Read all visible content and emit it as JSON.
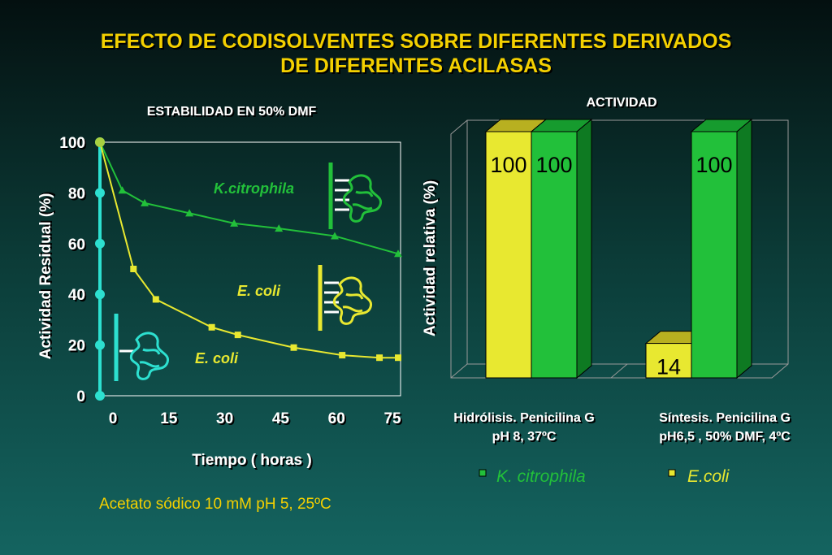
{
  "title": {
    "line1": "EFECTO DE CODISOLVENTES SOBRE DIFERENTES DERIVADOS",
    "line2": "DE DIFERENTES ACILASAS"
  },
  "colors": {
    "kcitrophila": "#22c03a",
    "ecoli": "#e8e830",
    "cyan": "#2de0d0",
    "title": "#f4d000"
  },
  "chart_data": [
    {
      "type": "line",
      "title": "ESTABILIDAD EN 50% DMF",
      "xlabel": "Tiempo ( horas )",
      "ylabel": "Actividad Residual (%)",
      "xlim": [
        0,
        80
      ],
      "ylim": [
        0,
        100
      ],
      "xticks": [
        "0",
        "15",
        "30",
        "45",
        "60",
        "75"
      ],
      "yticks": [
        "0",
        "20",
        "40",
        "60",
        "80",
        "100"
      ],
      "series": [
        {
          "name": "K.citrophila",
          "x": [
            0,
            6,
            12,
            24,
            36,
            48,
            63,
            80
          ],
          "y": [
            100,
            81,
            76,
            72,
            68,
            66,
            63,
            56
          ]
        },
        {
          "name": "E. coli",
          "x": [
            0,
            9,
            15,
            30,
            37,
            52,
            65,
            75,
            80
          ],
          "y": [
            100,
            50,
            38,
            27,
            24,
            19,
            16,
            15,
            15
          ]
        }
      ],
      "annotations": [
        "K.citrophila",
        "E. coli",
        "E. coli"
      ],
      "note": "Acetato sódico 10 mM pH 5, 25ºC"
    },
    {
      "type": "bar",
      "title": "ACTIVIDAD",
      "ylabel": "Actividad relativa (%)",
      "ylim": [
        0,
        100
      ],
      "categories": [
        {
          "line1": "Hidrólisis. Penicilina  G",
          "line2": "pH 8, 37ºC"
        },
        {
          "line1": "Síntesis. Penicilina  G",
          "line2": "pH6,5 , 50% DMF, 4ºC"
        }
      ],
      "series": [
        {
          "name": "K. citrophila",
          "values": [
            100,
            100
          ]
        },
        {
          "name": "E.coli",
          "values": [
            100,
            14
          ]
        }
      ],
      "data_labels": [
        [
          "100",
          "100"
        ],
        [
          "100",
          "14"
        ]
      ]
    }
  ]
}
